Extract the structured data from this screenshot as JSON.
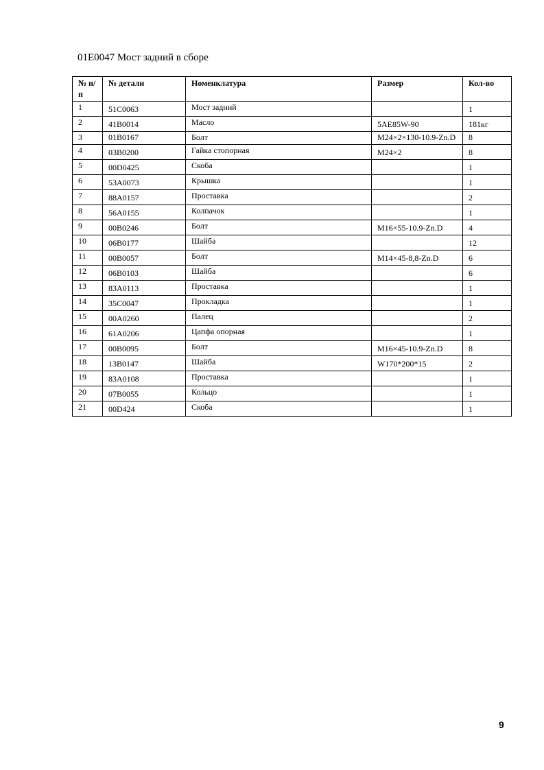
{
  "title": "01E0047 Мост задний в сборе",
  "table": {
    "headers": [
      "№ п/п",
      "№ детали",
      "Номенклатура",
      "Размер",
      "Кол-во"
    ],
    "rows": [
      [
        "1",
        "51C0063",
        "Мост задний",
        "",
        "1"
      ],
      [
        "2",
        "41B0014",
        "Масло",
        "5AE85W-90",
        "181кг"
      ],
      [
        "3",
        "01B0167",
        "Болт",
        "M24×2×130-10.9-Zn.D",
        "8"
      ],
      [
        "4",
        "03B0200",
        "Гайка стопорная",
        "M24×2",
        "8"
      ],
      [
        "5",
        "00D0425",
        "Скоба",
        "",
        "1"
      ],
      [
        "6",
        "53A0073",
        "Крышка",
        "",
        "1"
      ],
      [
        "7",
        "88A0157",
        "Проставка",
        "",
        "2"
      ],
      [
        "8",
        "56A0155",
        "Колпачок",
        "",
        "1"
      ],
      [
        "9",
        "00B0246",
        "Болт",
        "M16×55-10.9-Zn.D",
        "4"
      ],
      [
        "10",
        "06B0177",
        "Шайба",
        "",
        "12"
      ],
      [
        "11",
        "00B0057",
        "Болт",
        "M14×45-8,8-Zn.D",
        "6"
      ],
      [
        "12",
        "06B0103",
        "Шайба",
        "",
        "6"
      ],
      [
        "13",
        "83A0113",
        "Проставка",
        "",
        "1"
      ],
      [
        "14",
        "35C0047",
        "Прокладка",
        "",
        "1"
      ],
      [
        "15",
        "00A0260",
        "Палец",
        "",
        "2"
      ],
      [
        "16",
        "61A0206",
        "Цапфа опорная",
        "",
        "1"
      ],
      [
        "17",
        "00B0095",
        "Болт",
        "M16×45-10.9-Zn.D",
        "8"
      ],
      [
        "18",
        "13B0147",
        "Шайба",
        "W170*200*15",
        "2"
      ],
      [
        "19",
        "83A0108",
        "Проставка",
        "",
        "1"
      ],
      [
        "20",
        "07B0055",
        "Кольцо",
        "",
        "1"
      ],
      [
        "21",
        "00D424",
        "Скоба",
        "",
        "1"
      ]
    ]
  },
  "page_number": "9"
}
